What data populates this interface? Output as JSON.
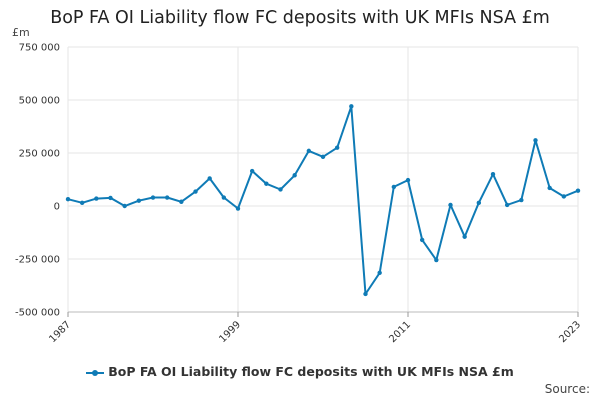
{
  "chart_data": {
    "type": "line",
    "title": "BoP FA OI Liability flow FC deposits with UK MFIs NSA £m",
    "unit_label": "£m",
    "xlabel": "",
    "ylabel": "",
    "ylim": [
      -500000,
      750000
    ],
    "yticks": [
      750000,
      500000,
      250000,
      0,
      -250000,
      -500000
    ],
    "ytick_labels": [
      "750 000",
      "500 000",
      "250 000",
      "0",
      "-250 000",
      "-500 000"
    ],
    "xlim": [
      1987,
      2023
    ],
    "xticks": [
      1987,
      1999,
      2011,
      2023
    ],
    "xtick_labels": [
      "1987",
      "1999",
      "2011",
      "2023"
    ],
    "grid": true,
    "legend_position": "bottom",
    "series": [
      {
        "name": "BoP FA OI Liability flow FC deposits with UK MFIs NSA £m",
        "color": "#0f7bb6",
        "x": [
          1987,
          1988,
          1989,
          1990,
          1991,
          1992,
          1993,
          1994,
          1995,
          1996,
          1997,
          1998,
          1999,
          2000,
          2001,
          2002,
          2003,
          2004,
          2005,
          2006,
          2007,
          2008,
          2009,
          2010,
          2011,
          2012,
          2013,
          2014,
          2015,
          2016,
          2017,
          2018,
          2019,
          2020,
          2021,
          2022,
          2023
        ],
        "values": [
          32000,
          15000,
          35000,
          38000,
          0,
          25000,
          40000,
          40000,
          20000,
          68000,
          130000,
          40000,
          -12000,
          165000,
          105000,
          78000,
          145000,
          260000,
          232000,
          275000,
          470000,
          -415000,
          -315000,
          90000,
          122000,
          -160000,
          -255000,
          5000,
          -145000,
          15000,
          150000,
          5000,
          28000,
          310000,
          85000,
          45000,
          72000
        ]
      }
    ],
    "source_label": "Source:"
  }
}
